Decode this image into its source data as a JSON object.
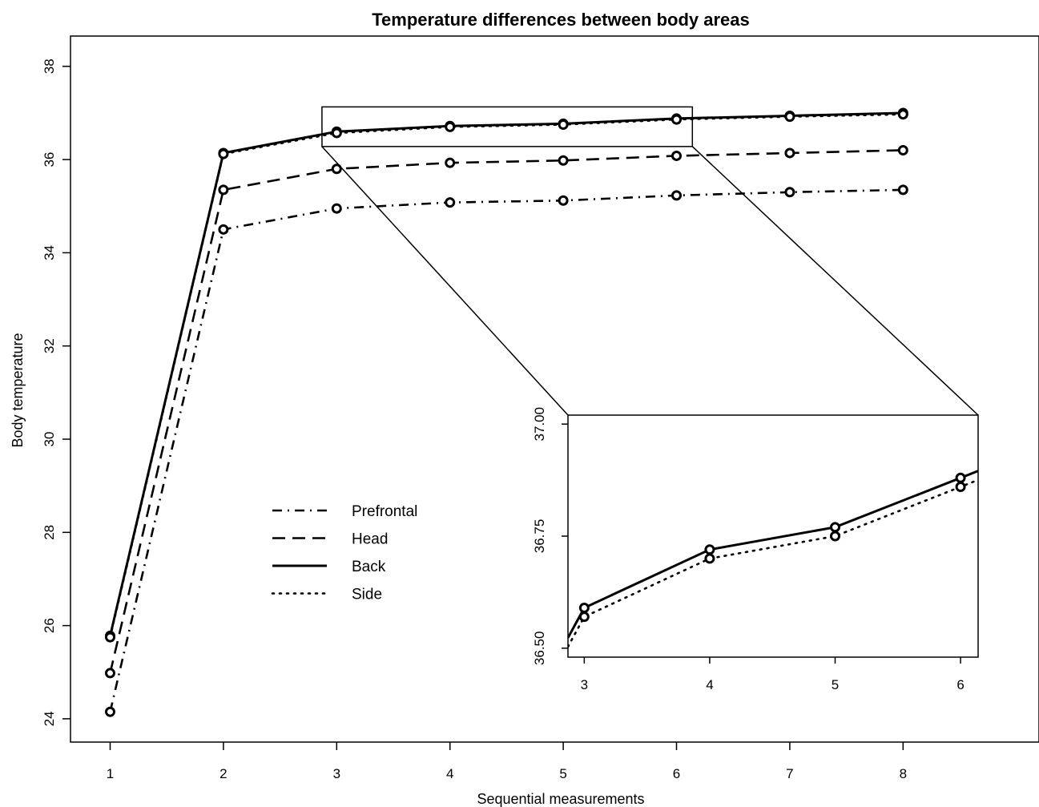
{
  "chart_data": {
    "type": "line",
    "title": "Temperature differences between body areas",
    "xlabel": "Sequential measurements",
    "ylabel": "Body temperature",
    "x": [
      1,
      2,
      3,
      4,
      5,
      6,
      7,
      8
    ],
    "xticks": [
      "1",
      "2",
      "3",
      "4",
      "5",
      "6",
      "7",
      "8"
    ],
    "yticks": [
      "24",
      "26",
      "28",
      "30",
      "32",
      "34",
      "36",
      "38"
    ],
    "xlim": [
      0.65,
      9.2
    ],
    "ylim": [
      23.5,
      38.65
    ],
    "series": [
      {
        "name": "Prefrontal",
        "dash": "dashdot",
        "values": [
          24.15,
          34.5,
          34.95,
          35.08,
          35.12,
          35.23,
          35.3,
          35.35
        ]
      },
      {
        "name": "Head",
        "dash": "dashed",
        "values": [
          24.98,
          35.35,
          35.8,
          35.93,
          35.98,
          36.08,
          36.14,
          36.2
        ]
      },
      {
        "name": "Back",
        "dash": "solid",
        "values": [
          25.78,
          36.14,
          36.6,
          36.72,
          36.77,
          36.88,
          36.94,
          37.0
        ]
      },
      {
        "name": "Side",
        "dash": "dotted",
        "values": [
          25.75,
          36.12,
          36.57,
          36.7,
          36.75,
          36.86,
          36.92,
          36.97
        ]
      }
    ],
    "legend_position": "center-left",
    "grid": false,
    "zoom_box": {
      "xlim": [
        2.87,
        6.14
      ],
      "ylim": [
        36.28,
        37.13
      ]
    },
    "inset": {
      "xticks": [
        "3",
        "4",
        "5",
        "6"
      ],
      "yticks": [
        "36.50",
        "36.75",
        "37.00"
      ],
      "xlim": [
        2.87,
        6.14
      ],
      "ylim": [
        36.48,
        37.02
      ],
      "series": [
        {
          "name": "Back",
          "dash": "solid",
          "points": [
            [
              3.0,
              36.59
            ],
            [
              4.0,
              36.72
            ],
            [
              5.0,
              36.77
            ],
            [
              6.0,
              36.88
            ]
          ]
        },
        {
          "name": "Side",
          "dash": "dotted",
          "points": [
            [
              3.0,
              36.57
            ],
            [
              4.0,
              36.7
            ],
            [
              5.0,
              36.75
            ],
            [
              6.0,
              36.86
            ]
          ]
        }
      ]
    }
  }
}
